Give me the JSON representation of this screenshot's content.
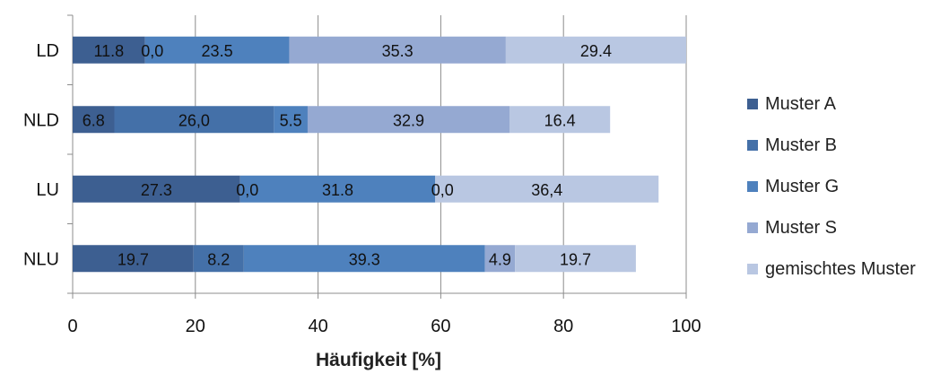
{
  "chart_data": {
    "type": "bar",
    "orientation": "horizontal",
    "stacked": true,
    "categories": [
      "LD",
      "NLD",
      "LU",
      "NLU"
    ],
    "series": [
      {
        "name": "Muster A",
        "values": [
          11.8,
          6.8,
          27.3,
          19.7
        ],
        "labels": [
          "11.8",
          "6.8",
          "27.3",
          "19.7"
        ],
        "color": "#3d5f91"
      },
      {
        "name": "Muster B",
        "values": [
          0.0,
          26.0,
          0.0,
          8.2
        ],
        "labels": [
          "0,0",
          "26,0",
          "0,0",
          "8.2"
        ],
        "color": "#4470a8"
      },
      {
        "name": "Muster G",
        "values": [
          23.5,
          5.5,
          31.8,
          39.3
        ],
        "labels": [
          "23.5",
          "5.5",
          "31.8",
          "39.3"
        ],
        "color": "#4e81bd"
      },
      {
        "name": "Muster S",
        "values": [
          35.3,
          32.9,
          0.0,
          4.9
        ],
        "labels": [
          "35.3",
          "32.9",
          "0,0",
          "4.9"
        ],
        "color": "#95a9d2"
      },
      {
        "name": "gemischtes Muster",
        "values": [
          29.4,
          16.4,
          36.4,
          19.7
        ],
        "labels": [
          "29.4",
          "16.4",
          "36,4",
          "19.7"
        ],
        "color": "#b9c7e2"
      }
    ],
    "xlabel": "Häufigkeit [%]",
    "xlim": [
      0,
      100
    ],
    "xticks": [
      0,
      20,
      40,
      60,
      80,
      100
    ],
    "grid": "vertical",
    "legend": "right"
  }
}
